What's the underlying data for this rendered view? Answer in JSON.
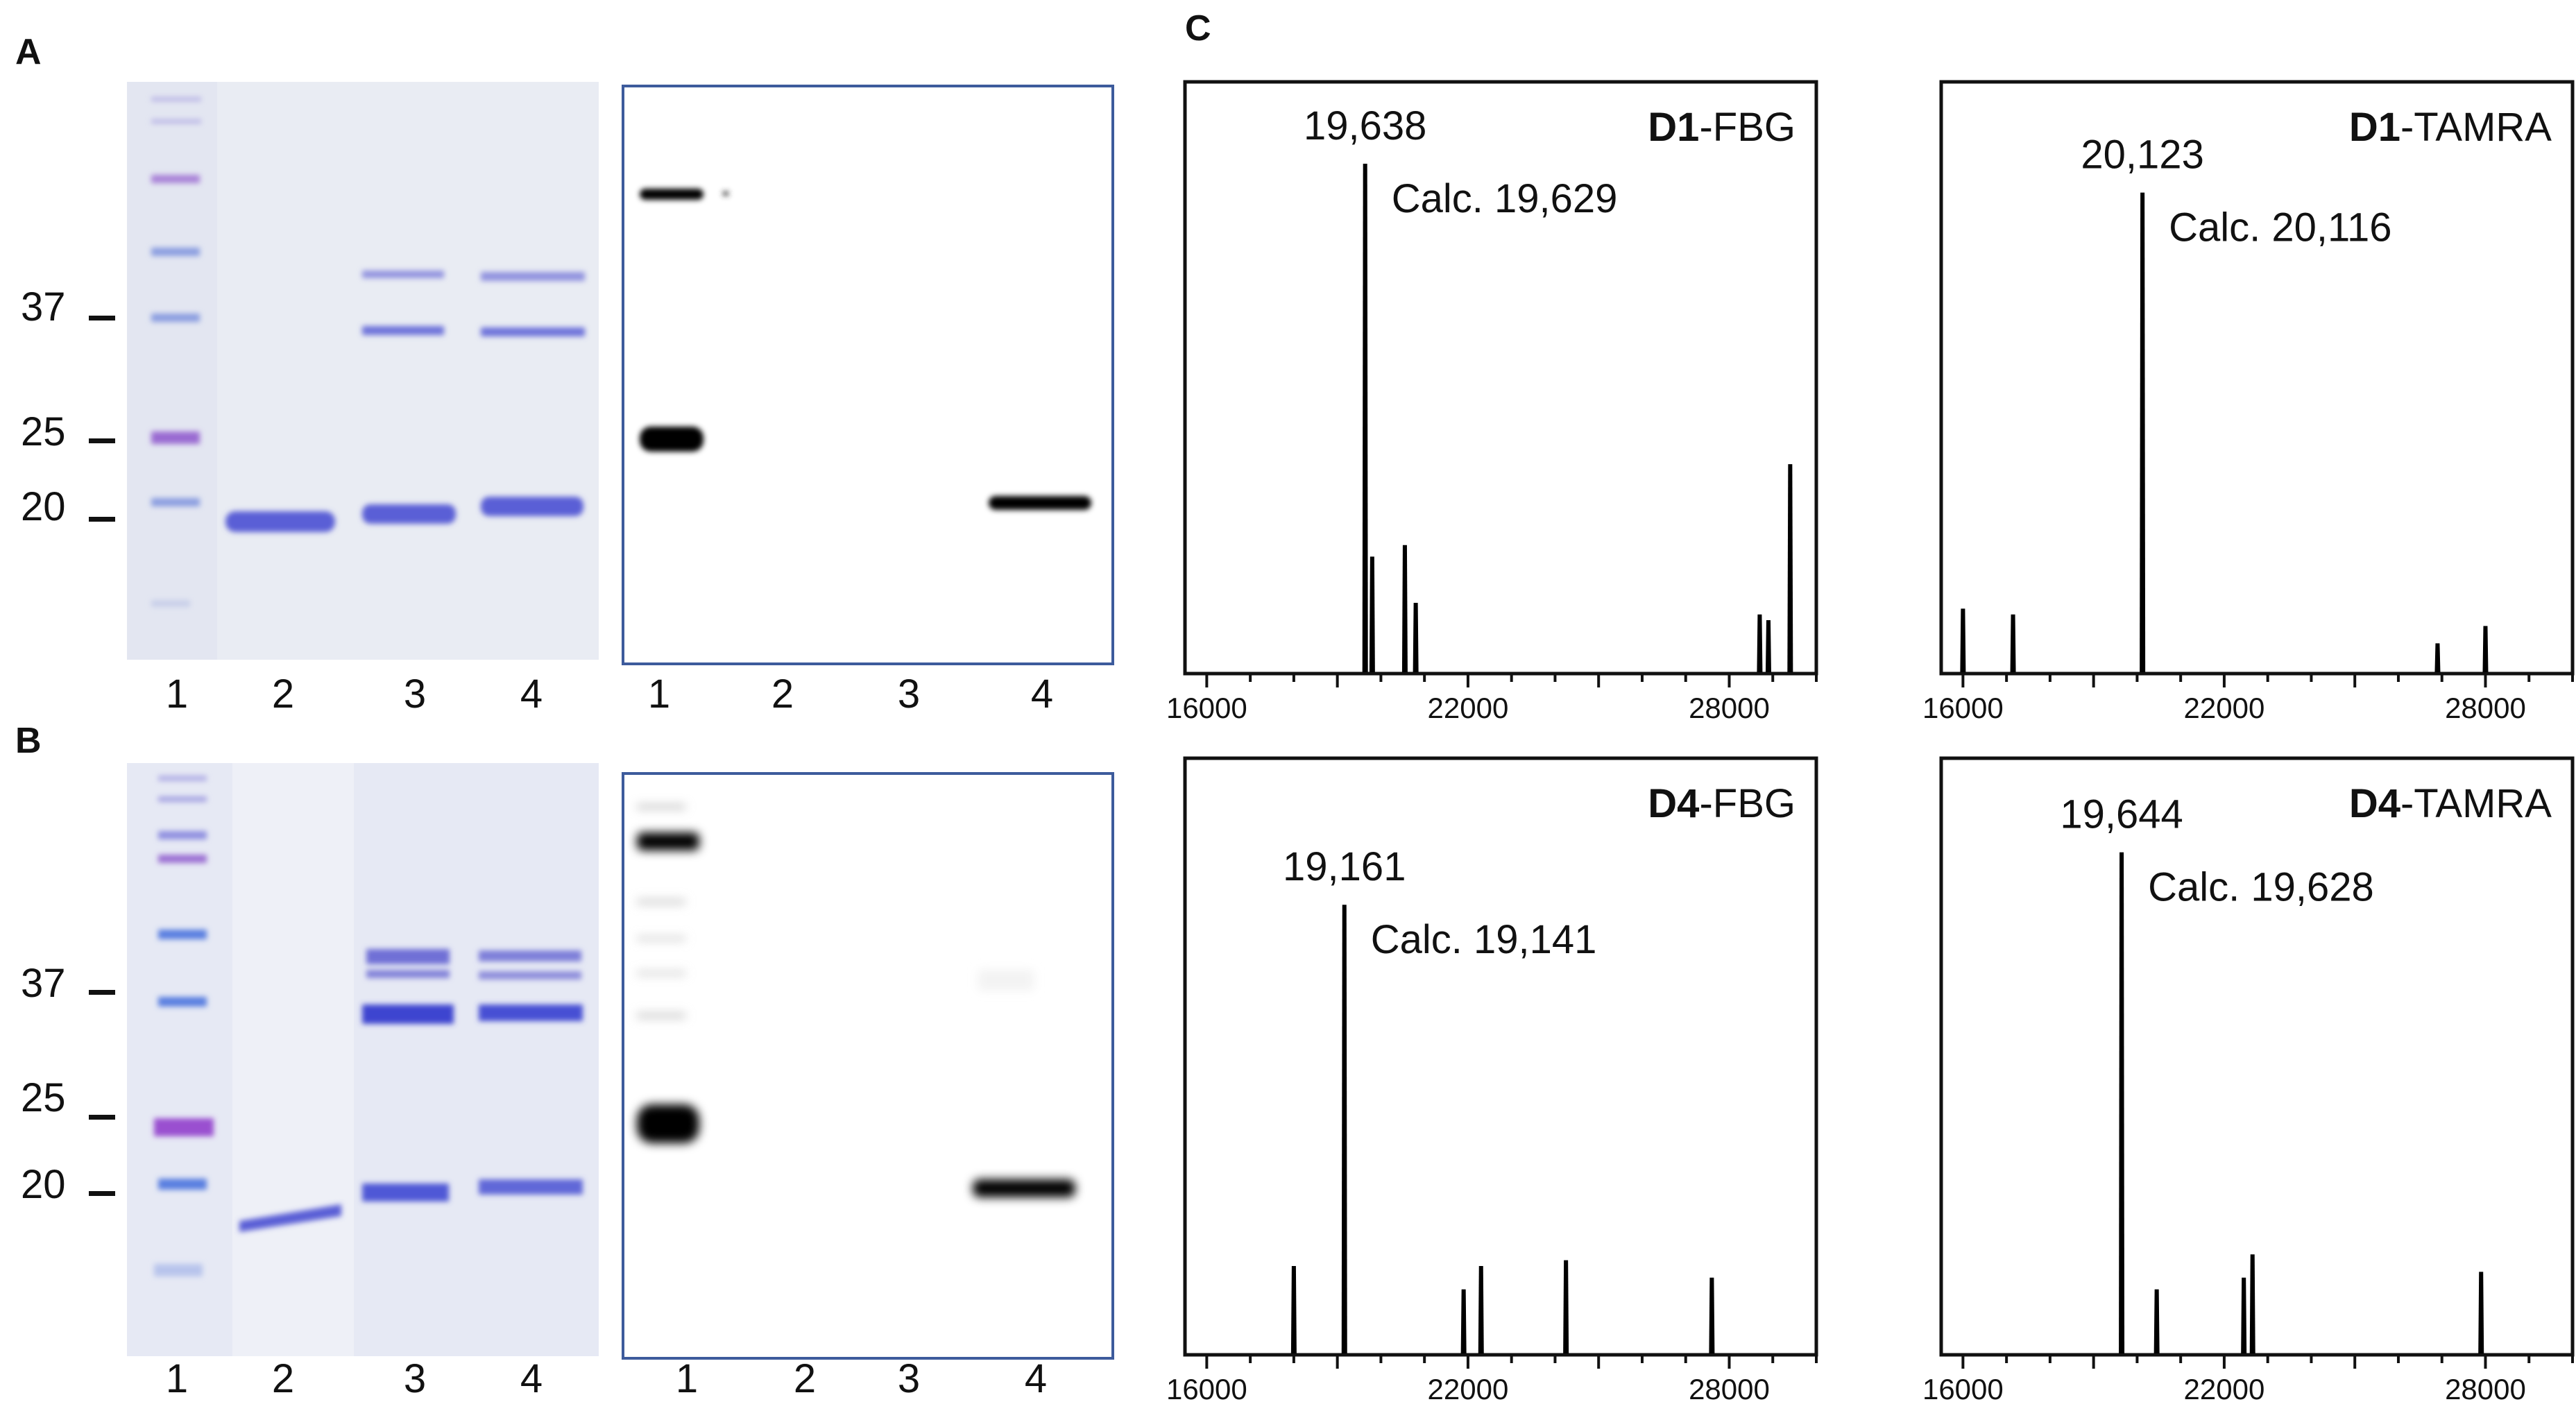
{
  "panels": {
    "A": {
      "letter": "A",
      "mw_markers": [
        "37",
        "25",
        "20"
      ],
      "gel_lanes": [
        "1",
        "2",
        "3",
        "4"
      ],
      "blot_lanes": [
        "1",
        "2",
        "3",
        "4"
      ]
    },
    "B": {
      "letter": "B",
      "mw_markers": [
        "37",
        "25",
        "20"
      ],
      "gel_lanes": [
        "1",
        "2",
        "3",
        "4"
      ],
      "blot_lanes": [
        "1",
        "2",
        "3",
        "4"
      ]
    },
    "C": {
      "letter": "C"
    }
  },
  "colors": {
    "gel_background": "#e9ecf3",
    "coomassie_band": "#5a5fd6",
    "ladder_band": "#9a6ad2",
    "blot_border": "#3d5b9c",
    "blot_band": "#000000",
    "spectrum_line": "#000000"
  },
  "chart_data": [
    {
      "type": "line",
      "name_bold": "D1",
      "name_rest": "-FBG",
      "x_ticks": [
        "16000",
        "22000",
        "28000"
      ],
      "xlim": [
        15500,
        30000
      ],
      "main_peak": {
        "x": 19638,
        "label": "19,638",
        "calc": "Calc. 19,629"
      },
      "peaks": [
        {
          "x": 19638,
          "y": 0.88
        },
        {
          "x": 19800,
          "y": 0.2
        },
        {
          "x": 20550,
          "y": 0.22
        },
        {
          "x": 20800,
          "y": 0.12
        },
        {
          "x": 28700,
          "y": 0.1
        },
        {
          "x": 28900,
          "y": 0.09
        },
        {
          "x": 29400,
          "y": 0.36
        }
      ]
    },
    {
      "type": "line",
      "name_bold": "D1",
      "name_rest": "-TAMRA",
      "x_ticks": [
        "16000",
        "22000",
        "28000"
      ],
      "xlim": [
        15500,
        30000
      ],
      "main_peak": {
        "x": 20123,
        "label": "20,123",
        "calc": "Calc. 20,116"
      },
      "peaks": [
        {
          "x": 16000,
          "y": 0.11
        },
        {
          "x": 17150,
          "y": 0.1
        },
        {
          "x": 20123,
          "y": 0.83
        },
        {
          "x": 26900,
          "y": 0.05
        },
        {
          "x": 28000,
          "y": 0.08
        }
      ]
    },
    {
      "type": "line",
      "name_bold": "D4",
      "name_rest": "-FBG",
      "x_ticks": [
        "16000",
        "22000",
        "28000"
      ],
      "xlim": [
        15500,
        30000
      ],
      "main_peak": {
        "x": 19161,
        "label": "19,161",
        "calc": "Calc. 19,141"
      },
      "peaks": [
        {
          "x": 18000,
          "y": 0.15
        },
        {
          "x": 19161,
          "y": 0.77
        },
        {
          "x": 21900,
          "y": 0.11
        },
        {
          "x": 22300,
          "y": 0.15
        },
        {
          "x": 24250,
          "y": 0.16
        },
        {
          "x": 27600,
          "y": 0.13
        }
      ]
    },
    {
      "type": "line",
      "name_bold": "D4",
      "name_rest": "-TAMRA",
      "x_ticks": [
        "16000",
        "22000",
        "28000"
      ],
      "xlim": [
        15500,
        30000
      ],
      "main_peak": {
        "x": 19644,
        "label": "19,644",
        "calc": "Calc. 19,628"
      },
      "peaks": [
        {
          "x": 19644,
          "y": 0.86
        },
        {
          "x": 20450,
          "y": 0.11
        },
        {
          "x": 22450,
          "y": 0.13
        },
        {
          "x": 22650,
          "y": 0.17
        },
        {
          "x": 27900,
          "y": 0.14
        }
      ]
    }
  ]
}
